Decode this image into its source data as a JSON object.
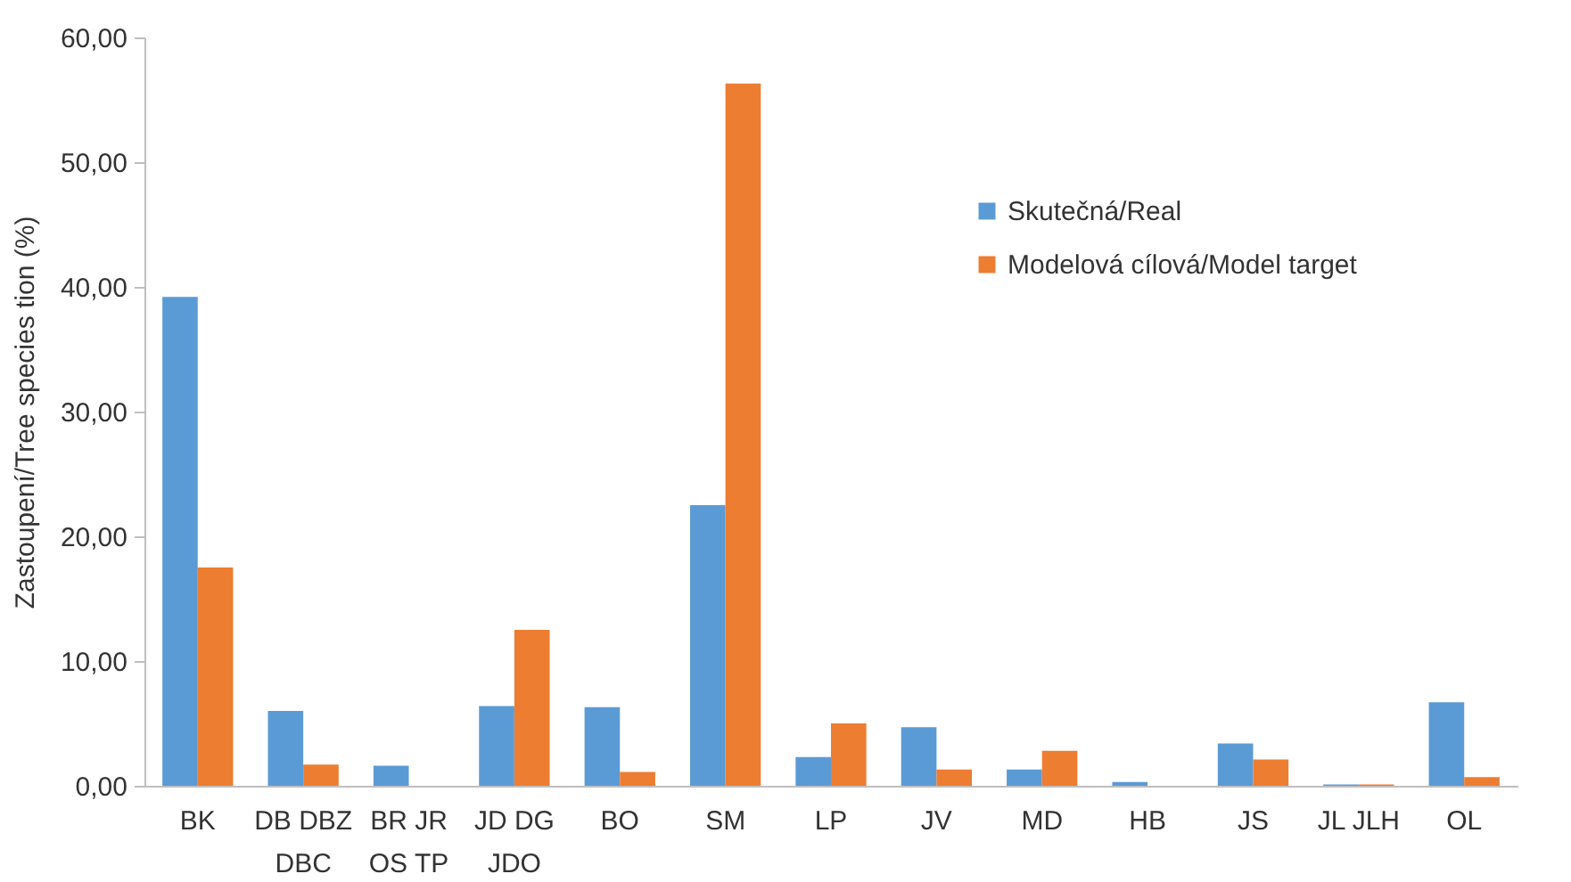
{
  "chart_data": {
    "type": "bar",
    "ylabel": "Zastoupení/Tree species tion (%)",
    "categories": [
      "BK",
      "DB DBZ DBC",
      "BR JR OS TP",
      "JD DG JDO",
      "BO",
      "SM",
      "LP",
      "JV",
      "MD",
      "HB",
      "JS",
      "JL JLH",
      "OL"
    ],
    "series": [
      {
        "name": "Skutečná/Real",
        "color": "#5b9bd5",
        "values": [
          39.2,
          6.0,
          1.6,
          6.4,
          6.3,
          22.5,
          2.3,
          4.7,
          1.3,
          0.3,
          3.4,
          0.1,
          6.7
        ]
      },
      {
        "name": "Modelová cílová/Model target",
        "color": "#ed7d31",
        "values": [
          17.5,
          1.7,
          0,
          12.5,
          1.1,
          56.3,
          5.0,
          1.3,
          2.8,
          0,
          2.1,
          0.1,
          0.7
        ]
      }
    ],
    "ylim": [
      0,
      60
    ],
    "yticks": [
      {
        "value": 0,
        "label": "0,00"
      },
      {
        "value": 10,
        "label": "10,00"
      },
      {
        "value": 20,
        "label": "20,00"
      },
      {
        "value": 30,
        "label": "30,00"
      },
      {
        "value": 40,
        "label": "40,00"
      },
      {
        "value": 50,
        "label": "50,00"
      },
      {
        "value": 60,
        "label": "60,00"
      }
    ],
    "legend": "top right"
  }
}
